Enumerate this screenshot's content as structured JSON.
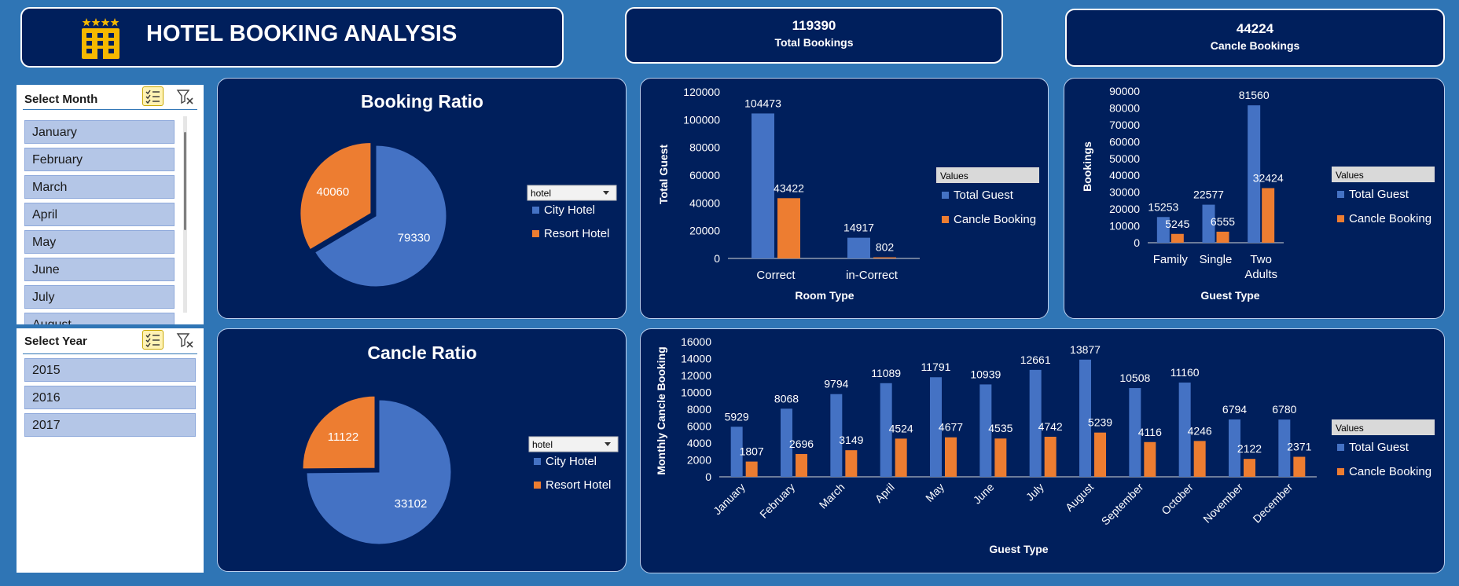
{
  "header": {
    "title": "HOTEL BOOKING ANALYSIS",
    "icon": "hotel-building-icon",
    "icon_color": "#f5b800"
  },
  "kpis": {
    "total": {
      "value": "119390",
      "label": "Total Bookings"
    },
    "cancel": {
      "value": "44224",
      "label": "Cancle Bookings"
    }
  },
  "month_slicer": {
    "title": "Select Month",
    "items": [
      "January",
      "February",
      "March",
      "April",
      "May",
      "June",
      "July",
      "August"
    ]
  },
  "year_slicer": {
    "title": "Select Year",
    "items": [
      "2015",
      "2016",
      "2017"
    ]
  },
  "colors": {
    "blue": "#4472c4",
    "orange": "#ed7d31",
    "panel": "#001f5c",
    "background": "#2f75b5"
  },
  "chart_data": [
    {
      "id": "booking_ratio",
      "type": "pie",
      "title": "Booking Ratio",
      "filter_label": "hotel",
      "labels": [
        "City Hotel",
        "Resort Hotel"
      ],
      "values": [
        79330,
        40060
      ],
      "legend": "right"
    },
    {
      "id": "cancel_ratio",
      "type": "pie",
      "title": "Cancle Ratio",
      "filter_label": "hotel",
      "labels": [
        "City Hotel",
        "Resort Hotel"
      ],
      "values": [
        33102,
        11122
      ],
      "legend": "right"
    },
    {
      "id": "room_type",
      "type": "bar",
      "title": "",
      "xlabel": "Room Type",
      "ylabel": "Total Guest",
      "legend_title": "Values",
      "categories": [
        "Correct",
        "in-Correct"
      ],
      "series": [
        {
          "name": "Total Guest",
          "values": [
            104473,
            14917
          ]
        },
        {
          "name": "Cancle Booking",
          "values": [
            43422,
            802
          ]
        }
      ],
      "ylim": [
        0,
        120000
      ],
      "yticks": [
        0,
        20000,
        40000,
        60000,
        80000,
        100000,
        120000
      ]
    },
    {
      "id": "guest_type",
      "type": "bar",
      "title": "",
      "xlabel": "Guest Type",
      "ylabel": "Bookings",
      "legend_title": "Values",
      "categories": [
        "Family",
        "Single",
        "Two Adults"
      ],
      "series": [
        {
          "name": "Total Guest",
          "values": [
            15253,
            22577,
            81560
          ]
        },
        {
          "name": "Cancle Booking",
          "values": [
            5245,
            6555,
            32424
          ]
        }
      ],
      "ylim": [
        0,
        90000
      ],
      "yticks": [
        0,
        10000,
        20000,
        30000,
        40000,
        50000,
        60000,
        70000,
        80000,
        90000
      ]
    },
    {
      "id": "monthly",
      "type": "bar",
      "title": "",
      "xlabel": "Guest Type",
      "ylabel": "Monthly Cancle Booking",
      "legend_title": "Values",
      "categories": [
        "January",
        "February",
        "March",
        "April",
        "May",
        "June",
        "July",
        "August",
        "September",
        "October",
        "November",
        "December"
      ],
      "series": [
        {
          "name": "Total Guest",
          "values": [
            5929,
            8068,
            9794,
            11089,
            11791,
            10939,
            12661,
            13877,
            10508,
            11160,
            6794,
            6780
          ]
        },
        {
          "name": "Cancle Booking",
          "values": [
            1807,
            2696,
            3149,
            4524,
            4677,
            4535,
            4742,
            5239,
            4116,
            4246,
            2122,
            2371
          ]
        }
      ],
      "ylim": [
        0,
        16000
      ],
      "yticks": [
        0,
        2000,
        4000,
        6000,
        8000,
        10000,
        12000,
        14000,
        16000
      ]
    }
  ]
}
